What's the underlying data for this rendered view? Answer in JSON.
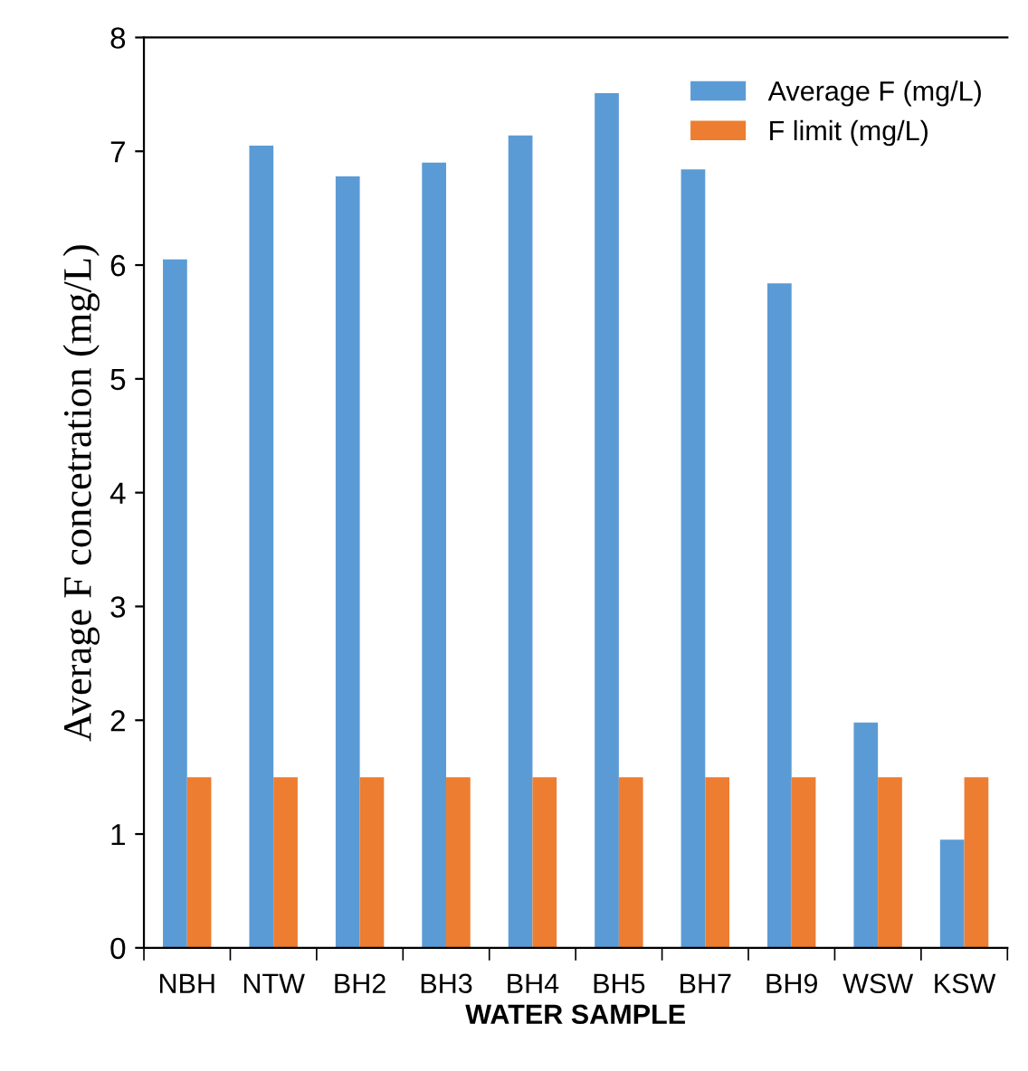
{
  "chart_data": {
    "type": "bar",
    "xlabel": "WATER SAMPLE",
    "ylabel": "Average F concetration (mg/L)",
    "categories": [
      "NBH",
      "NTW",
      "BH2",
      "BH3",
      "BH4",
      "BH5",
      "BH7",
      "BH9",
      "WSW",
      "KSW"
    ],
    "series": [
      {
        "name": "Average F (mg/L)",
        "color": "#5b9bd5",
        "values": [
          6.05,
          7.05,
          6.78,
          6.9,
          7.14,
          7.51,
          6.84,
          5.84,
          1.98,
          0.95
        ]
      },
      {
        "name": "F limit (mg/L)",
        "color": "#ed7d31",
        "values": [
          1.5,
          1.5,
          1.5,
          1.5,
          1.5,
          1.5,
          1.5,
          1.5,
          1.5,
          1.5
        ]
      }
    ],
    "ylim": [
      0,
      8
    ],
    "yticks": [
      0,
      1,
      2,
      3,
      4,
      5,
      6,
      7,
      8
    ],
    "grid": false,
    "legend": "top right"
  }
}
